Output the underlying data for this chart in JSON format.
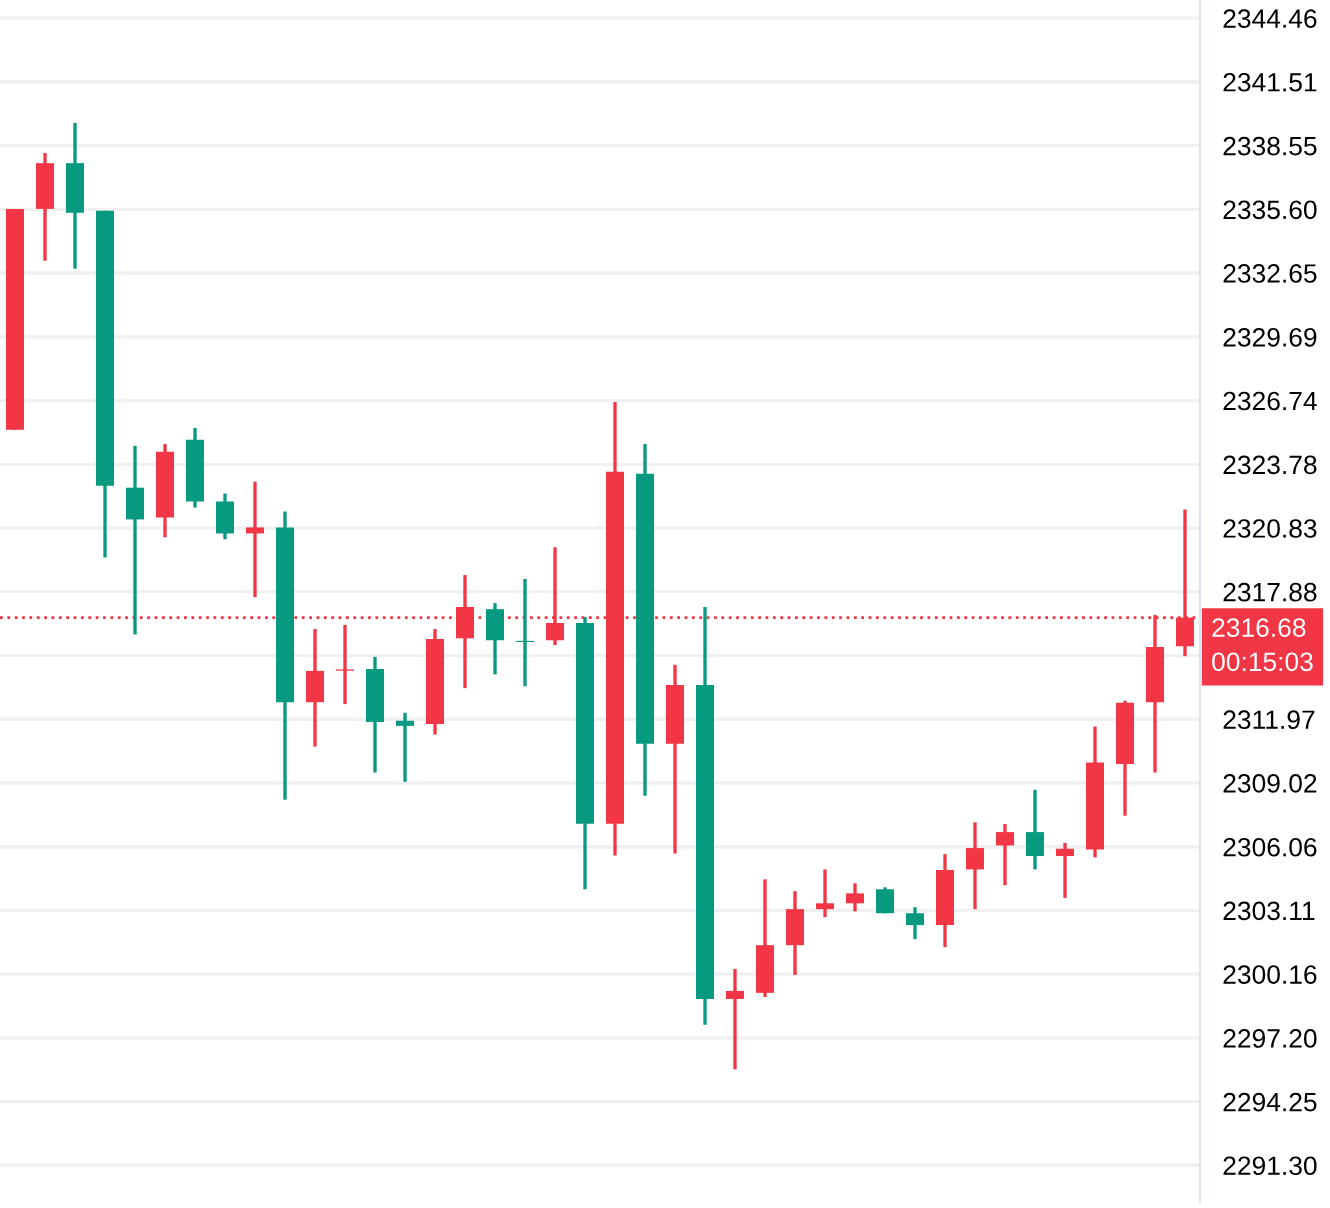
{
  "chart_data": {
    "type": "candlestick",
    "categories": [
      null,
      null,
      null,
      null,
      null,
      null,
      null,
      null,
      null,
      null,
      null,
      null,
      null,
      null,
      null,
      null,
      null,
      null,
      null,
      null,
      null,
      null,
      null,
      null,
      null,
      null,
      null,
      null,
      null,
      null,
      null,
      null,
      null,
      null,
      null,
      null,
      null,
      null,
      null,
      null
    ],
    "ohlc": [
      [
        2325.38,
        2335.62,
        2325.38,
        2335.62
      ],
      [
        2335.62,
        2338.21,
        2333.22,
        2337.74
      ],
      [
        2337.74,
        2339.6,
        2332.85,
        2335.44
      ],
      [
        2335.53,
        2335.53,
        2319.47,
        2322.79
      ],
      [
        2322.7,
        2324.64,
        2315.9,
        2321.23
      ],
      [
        2321.32,
        2324.73,
        2320.4,
        2324.37
      ],
      [
        2324.92,
        2325.47,
        2321.78,
        2322.06
      ],
      [
        2322.06,
        2322.43,
        2320.31,
        2320.58
      ],
      [
        2320.58,
        2322.98,
        2317.63,
        2320.86
      ],
      [
        2320.86,
        2321.6,
        2308.24,
        2312.76
      ],
      [
        2312.76,
        2316.15,
        2310.7,
        2314.21
      ],
      [
        2314.22,
        2316.34,
        2312.67,
        2314.28
      ],
      [
        2314.3,
        2314.86,
        2309.5,
        2311.84
      ],
      [
        2311.9,
        2312.27,
        2309.07,
        2311.66
      ],
      [
        2311.75,
        2316.15,
        2311.26,
        2315.69
      ],
      [
        2315.72,
        2318.65,
        2313.41,
        2317.17
      ],
      [
        2317.07,
        2317.35,
        2314.05,
        2315.63
      ],
      [
        2315.6,
        2318.47,
        2313.5,
        2315.55
      ],
      [
        2315.63,
        2319.94,
        2315.41,
        2316.43
      ],
      [
        2316.43,
        2316.71,
        2304.09,
        2307.13
      ],
      [
        2307.13,
        2326.67,
        2305.66,
        2323.44
      ],
      [
        2323.35,
        2324.73,
        2308.42,
        2310.83
      ],
      [
        2310.83,
        2314.49,
        2305.75,
        2313.56
      ],
      [
        2313.56,
        2317.17,
        2297.81,
        2299.01
      ],
      [
        2299.01,
        2300.4,
        2295.75,
        2299.38
      ],
      [
        2299.29,
        2304.55,
        2299.1,
        2301.5
      ],
      [
        2301.5,
        2304.0,
        2300.12,
        2303.17
      ],
      [
        2303.17,
        2305.01,
        2302.8,
        2303.44
      ],
      [
        2303.44,
        2304.37,
        2303.07,
        2303.9
      ],
      [
        2304.09,
        2304.18,
        2302.98,
        2302.98
      ],
      [
        2302.98,
        2303.26,
        2301.78,
        2302.43
      ],
      [
        2302.43,
        2305.72,
        2301.41,
        2304.98
      ],
      [
        2305.01,
        2307.19,
        2303.17,
        2306.0
      ],
      [
        2306.12,
        2307.11,
        2304.28,
        2306.74
      ],
      [
        2306.74,
        2308.7,
        2305.01,
        2305.63
      ],
      [
        2305.63,
        2306.24,
        2303.69,
        2305.97
      ],
      [
        2305.93,
        2311.63,
        2305.57,
        2309.97
      ],
      [
        2309.9,
        2312.83,
        2307.5,
        2312.73
      ],
      [
        2312.76,
        2316.8,
        2309.5,
        2315.32
      ],
      [
        2315.35,
        2321.69,
        2314.89,
        2316.68
      ]
    ],
    "colors": [
      "#f23645",
      "#f23645",
      "#089981",
      "#089981",
      "#089981",
      "#f23645",
      "#089981",
      "#089981",
      "#f23645",
      "#089981",
      "#f23645",
      "#f23645",
      "#089981",
      "#089981",
      "#f23645",
      "#f23645",
      "#089981",
      "#089981",
      "#f23645",
      "#089981",
      "#f23645",
      "#089981",
      "#f23645",
      "#089981",
      "#f23645",
      "#f23645",
      "#f23645",
      "#f23645",
      "#f23645",
      "#089981",
      "#089981",
      "#f23645",
      "#f23645",
      "#f23645",
      "#089981",
      "#f23645",
      "#f23645",
      "#f23645",
      "#f23645",
      "#f23645"
    ],
    "ylim": [
      2289.6,
      2345.3
    ],
    "yticks": [
      2344.46,
      2341.51,
      2338.55,
      {
        "value": 2335.6,
        "label": "2335.60"
      },
      2332.65,
      2329.69,
      2326.74,
      2323.78,
      2320.83,
      2317.88,
      {
        "value": 2314.92,
        "label": null
      },
      2311.97,
      2309.02,
      2306.06,
      2303.11,
      2300.16,
      {
        "value": 2297.2,
        "label": "2297.20"
      },
      2294.25,
      {
        "value": 2291.3,
        "label": "2291.30"
      }
    ],
    "grid": "y",
    "ref_lines": [
      {
        "axis": "y",
        "value": 2316.68,
        "label": "2316.68",
        "color": "#f23645",
        "line_style": "dotted"
      }
    ],
    "annotations": [
      "00:15:03"
    ],
    "tick_labels": "y"
  }
}
